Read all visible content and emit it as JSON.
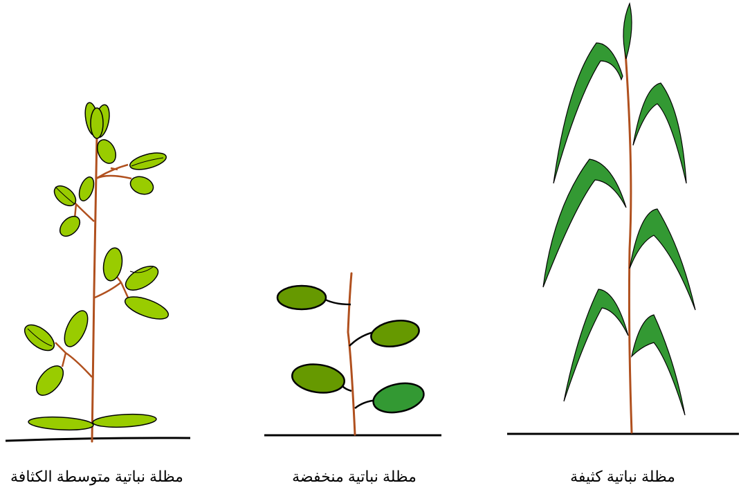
{
  "panels": [
    {
      "caption": "مظلة نباتية متوسطة الكثافة"
    },
    {
      "caption": "مظلة نباتية منخفضة"
    },
    {
      "caption": "مظلة نباتية كثيفة"
    }
  ]
}
